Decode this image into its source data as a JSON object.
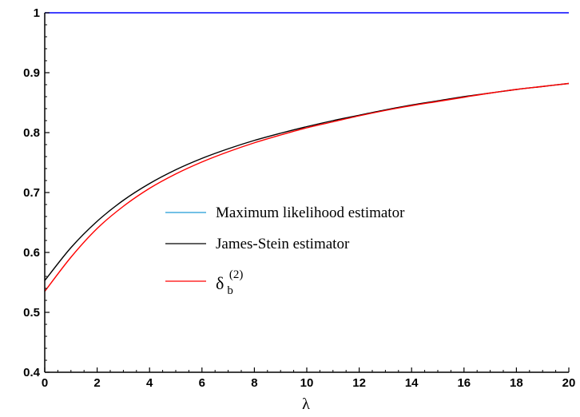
{
  "chart_data": {
    "type": "line",
    "title": "",
    "xlabel": "λ",
    "ylabel": "",
    "xlim": [
      0,
      20
    ],
    "ylim": [
      0.4,
      1.0
    ],
    "x_ticks": [
      "0",
      "2",
      "4",
      "6",
      "8",
      "10",
      "12",
      "14",
      "16",
      "18",
      "20"
    ],
    "y_ticks": [
      "0.4",
      "0.5",
      "0.6",
      "0.7",
      "0.8",
      "0.9",
      "1"
    ],
    "grid": false,
    "legend_position": "center",
    "series": [
      {
        "name": "Maximum likelihood estimator",
        "color": "#0000ff",
        "legend_color": "#1e9bd7",
        "x": [
          0,
          2,
          4,
          6,
          8,
          10,
          12,
          14,
          16,
          18,
          20
        ],
        "y": [
          1,
          1,
          1,
          1,
          1,
          1,
          1,
          1,
          1,
          1,
          1
        ]
      },
      {
        "name": "James-Stein estimator",
        "color": "#000000",
        "x": [
          0,
          1,
          2,
          3,
          4,
          5,
          6,
          7,
          8,
          9,
          10,
          11,
          12,
          13,
          14,
          15,
          16,
          17,
          18,
          19,
          20
        ],
        "y": [
          0.553,
          0.608,
          0.652,
          0.687,
          0.715,
          0.738,
          0.757,
          0.773,
          0.787,
          0.799,
          0.81,
          0.82,
          0.829,
          0.838,
          0.846,
          0.853,
          0.86,
          0.866,
          0.872,
          0.877,
          0.882
        ]
      },
      {
        "name_symbol": "δ",
        "name_sub": "b",
        "name_sup": "(2)",
        "color": "#ff0000",
        "x": [
          0,
          1,
          2,
          3,
          4,
          5,
          6,
          7,
          8,
          9,
          10,
          11,
          12,
          13,
          14,
          15,
          16,
          17,
          18,
          19,
          20
        ],
        "y": [
          0.535,
          0.592,
          0.64,
          0.677,
          0.707,
          0.731,
          0.751,
          0.768,
          0.783,
          0.796,
          0.808,
          0.818,
          0.828,
          0.837,
          0.845,
          0.852,
          0.859,
          0.866,
          0.872,
          0.877,
          0.882
        ]
      }
    ]
  }
}
